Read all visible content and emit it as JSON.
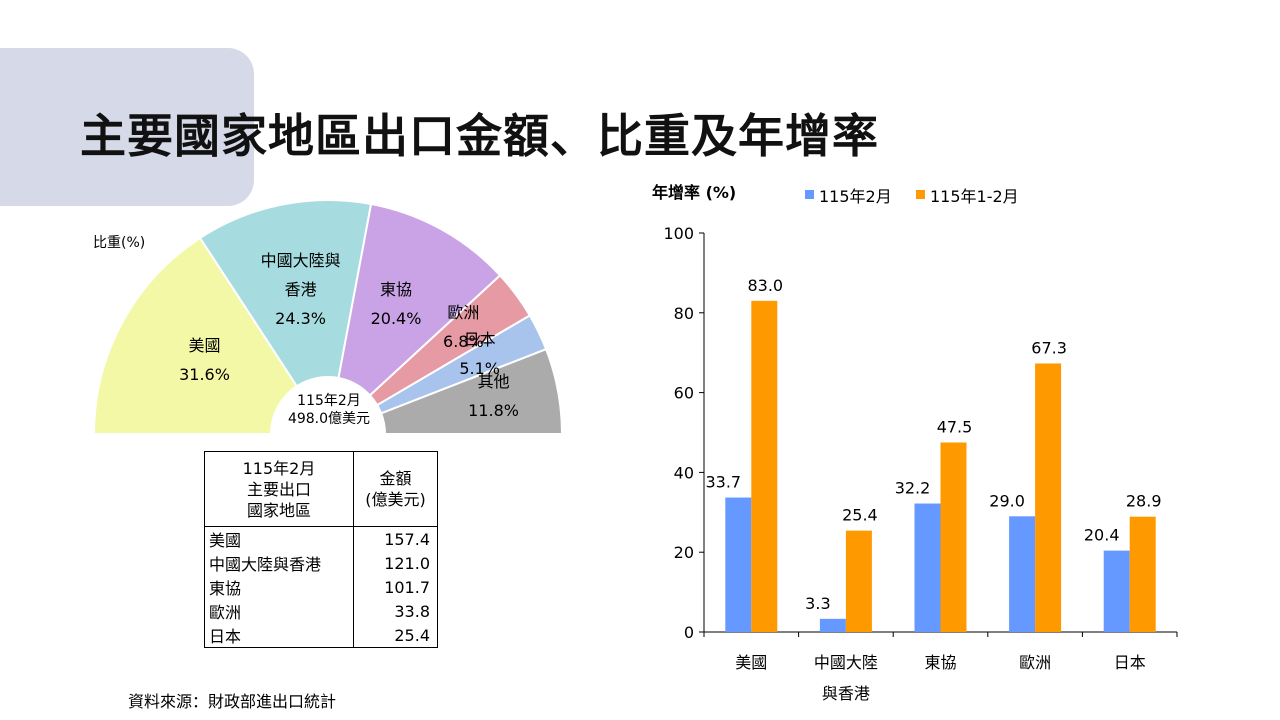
{
  "title": "主要國家地區出口金額、比重及年增率",
  "colors": {
    "title_tab": "#d5d9e8",
    "series_feb": "#6699ff",
    "series_janfeb": "#ff9900",
    "pie": [
      "#f3f8a6",
      "#a6dcdf",
      "#c9a3e6",
      "#e69aa3",
      "#a9c4ec",
      "#ababab"
    ]
  },
  "pie_chart": {
    "share_label": "比重(%)",
    "total_line1": "115年2月",
    "total_line2": "498.0億美元",
    "slices": [
      {
        "label_lines": [
          "美國"
        ],
        "pct": 31.6,
        "pct_text": "31.6%"
      },
      {
        "label_lines": [
          "中國大陸與",
          "香港"
        ],
        "pct": 24.3,
        "pct_text": "24.3%"
      },
      {
        "label_lines": [
          "東協"
        ],
        "pct": 20.4,
        "pct_text": "20.4%"
      },
      {
        "label_lines": [
          "歐洲"
        ],
        "pct": 6.8,
        "pct_text": "6.8%"
      },
      {
        "label_lines": [
          "日本"
        ],
        "pct": 5.1,
        "pct_text": "5.1%"
      },
      {
        "label_lines": [
          "其他"
        ],
        "pct": 11.8,
        "pct_text": "11.8%"
      }
    ]
  },
  "table": {
    "header_left": [
      "115年2月",
      "主要出口",
      "國家地區"
    ],
    "header_right": [
      "金額",
      "(億美元)"
    ],
    "rows": [
      {
        "name": "美國",
        "value": "157.4"
      },
      {
        "name": "中國大陸與香港",
        "value": "121.0"
      },
      {
        "name": "東協",
        "value": "101.7"
      },
      {
        "name": "歐洲",
        "value": "33.8"
      },
      {
        "name": "日本",
        "value": "25.4"
      }
    ]
  },
  "source": "資料來源：財政部進出口統計",
  "chart_data": {
    "type": "bar",
    "ylabel": "年增率 (%)",
    "ylim": [
      0,
      100
    ],
    "yticks": [
      0,
      20,
      40,
      60,
      80,
      100
    ],
    "categories": [
      [
        "美國"
      ],
      [
        "中國大陸",
        "與香港"
      ],
      [
        "東協"
      ],
      [
        "歐洲"
      ],
      [
        "日本"
      ]
    ],
    "series": [
      {
        "name": "115年2月",
        "values": [
          33.7,
          3.3,
          32.2,
          29.0,
          20.4
        ]
      },
      {
        "name": "115年1-2月",
        "values": [
          83.0,
          25.4,
          47.5,
          67.3,
          28.9
        ]
      }
    ],
    "legend": "top"
  }
}
